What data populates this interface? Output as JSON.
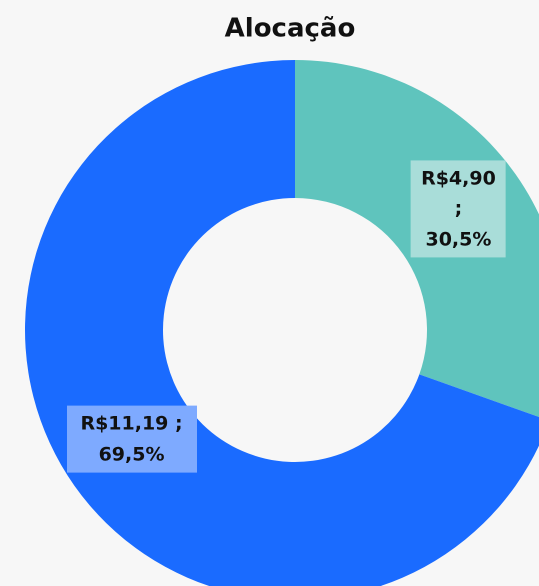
{
  "chart_data": {
    "type": "pie",
    "title": "Alocação",
    "categories": [
      null,
      null
    ],
    "values": [
      4.9,
      11.19
    ],
    "value_labels": [
      "R$4,90 ; 30,5%",
      "R$11,19 ; 69,5%"
    ],
    "colors": [
      "#5fc4bd",
      "#1a6bff"
    ],
    "label_colors": [
      "#a9ddd9",
      "#7eaaff"
    ],
    "donut": true
  }
}
